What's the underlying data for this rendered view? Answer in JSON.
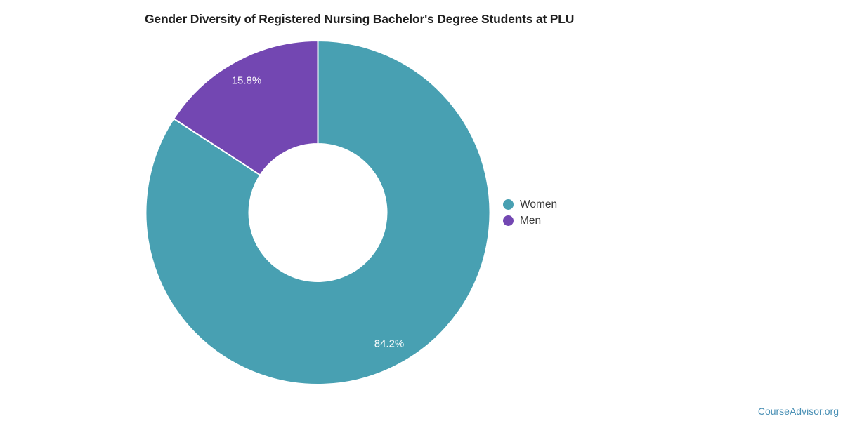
{
  "page": {
    "background": "#ffffff",
    "attribution": "CourseAdvisor.org",
    "attribution_color": "#4a90b5"
  },
  "chart_data": {
    "type": "pie",
    "subtype": "donut",
    "title": "Gender Diversity of Registered Nursing Bachelor's Degree Students at PLU",
    "categories": [
      "Women",
      "Men"
    ],
    "values": [
      84.2,
      15.8
    ],
    "data_labels": [
      "84.2%",
      "15.8%"
    ],
    "colors": [
      "#48a0b2",
      "#7347b2"
    ],
    "units": "%",
    "start_angle_deg": 0,
    "direction": "clockwise",
    "inner_radius_ratio": 0.4,
    "slice_border_color": "#ffffff",
    "legend_position": "right",
    "grid": false
  },
  "legend": {
    "items": [
      {
        "label": "Women",
        "color": "#48a0b2"
      },
      {
        "label": "Men",
        "color": "#7347b2"
      }
    ]
  }
}
